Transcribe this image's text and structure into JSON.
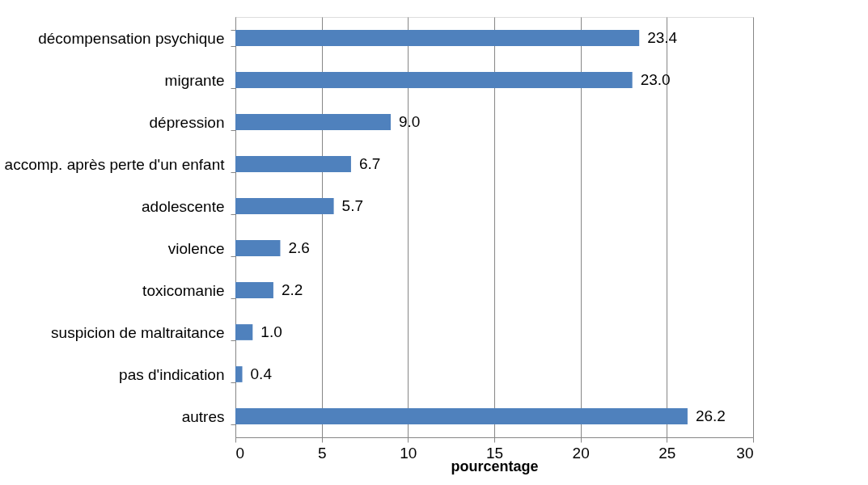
{
  "chart_data": {
    "type": "bar",
    "orientation": "horizontal",
    "xlabel": "pourcentage",
    "categories": [
      "décompensation psychique",
      "migrante",
      "dépression",
      "accomp. après perte d'un enfant",
      "adolescente",
      "violence",
      "toxicomanie",
      "suspicion de maltraitance",
      "pas d'indication",
      "autres"
    ],
    "values": [
      23.4,
      23.0,
      9.0,
      6.7,
      5.7,
      2.6,
      2.2,
      1.0,
      0.4,
      26.2
    ],
    "value_labels": [
      "23.4",
      "23.0",
      "9.0",
      "6.7",
      "5.7",
      "2.6",
      "2.2",
      "1.0",
      "0.4",
      "26.2"
    ],
    "color": "#4f81bd",
    "xlim": [
      0,
      30
    ],
    "xticks": [
      0,
      5,
      10,
      15,
      20,
      25,
      30
    ],
    "grid": "x"
  }
}
